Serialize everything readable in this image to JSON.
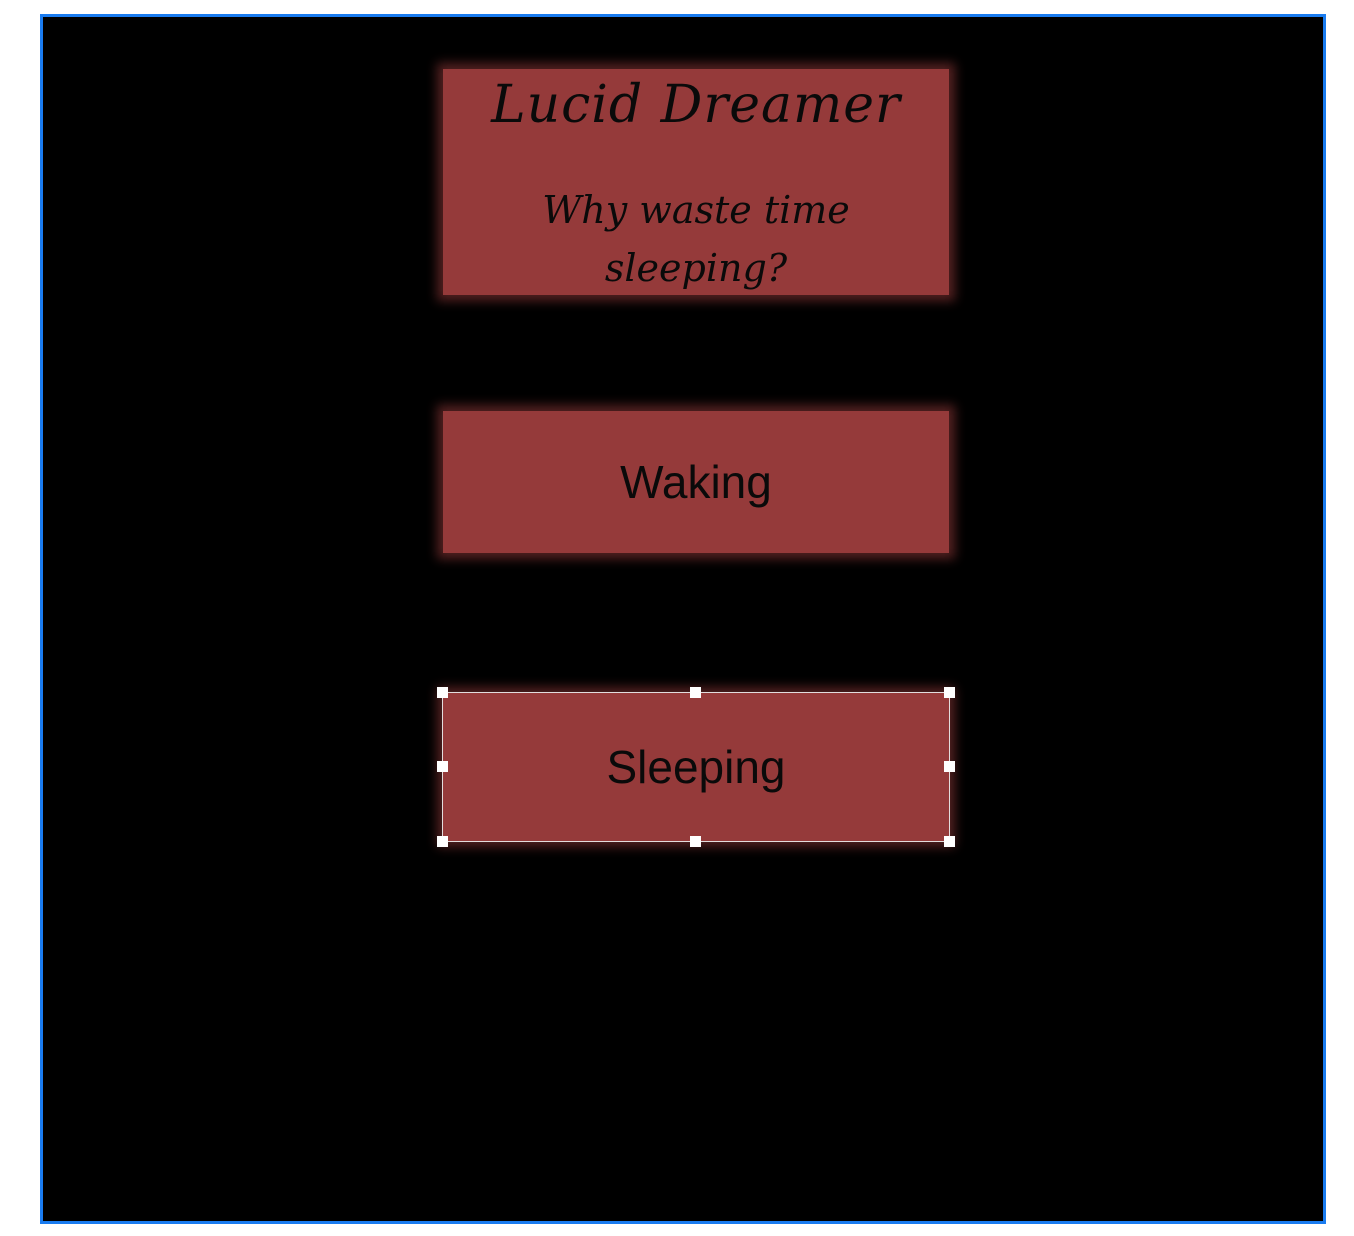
{
  "title_card": {
    "title": "Lucid Dreamer",
    "subtitle": "Why waste time sleeping?"
  },
  "buttons": {
    "waking_label": "Waking",
    "sleeping_label": "Sleeping"
  },
  "colors": {
    "canvas_background": "#000000",
    "card_fill": "#953a3a",
    "canvas_border": "#1a7cf0",
    "selection_handles": "#ffffff"
  }
}
